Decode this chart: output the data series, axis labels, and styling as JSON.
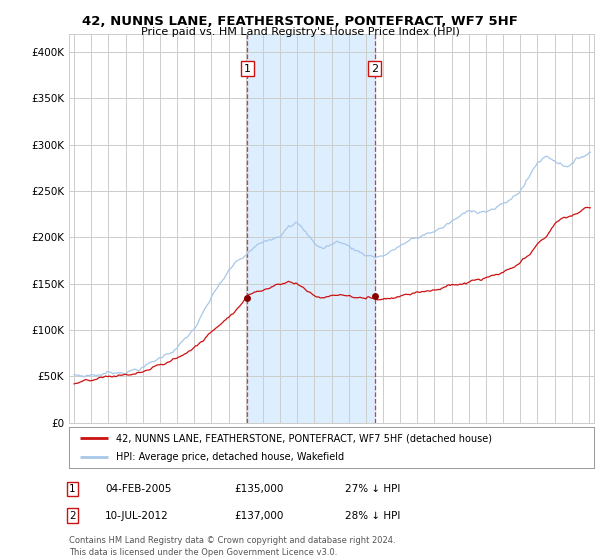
{
  "title": "42, NUNNS LANE, FEATHERSTONE, PONTEFRACT, WF7 5HF",
  "subtitle": "Price paid vs. HM Land Registry's House Price Index (HPI)",
  "footer": "Contains HM Land Registry data © Crown copyright and database right 2024.\nThis data is licensed under the Open Government Licence v3.0.",
  "legend_line1": "42, NUNNS LANE, FEATHERSTONE, PONTEFRACT, WF7 5HF (detached house)",
  "legend_line2": "HPI: Average price, detached house, Wakefield",
  "sale1_date": "04-FEB-2005",
  "sale1_price": "£135,000",
  "sale1_note": "27% ↓ HPI",
  "sale2_date": "10-JUL-2012",
  "sale2_price": "£137,000",
  "sale2_note": "28% ↓ HPI",
  "hpi_color": "#a8c8e8",
  "price_color": "#cc1111",
  "shaded_color": "#ddeeff",
  "sale1_x": 2005.09,
  "sale2_x": 2012.52,
  "sale1_y": 135000,
  "sale2_y": 137000,
  "ylim": [
    0,
    420000
  ],
  "xlim": [
    1994.7,
    2025.3
  ],
  "yticks": [
    0,
    50000,
    100000,
    150000,
    200000,
    250000,
    300000,
    350000,
    400000
  ],
  "ytick_labels": [
    "£0",
    "£50K",
    "£100K",
    "£150K",
    "£200K",
    "£250K",
    "£300K",
    "£350K",
    "£400K"
  ],
  "xticks": [
    1995,
    1996,
    1997,
    1998,
    1999,
    2000,
    2001,
    2002,
    2003,
    2004,
    2005,
    2006,
    2007,
    2008,
    2009,
    2010,
    2011,
    2012,
    2013,
    2014,
    2015,
    2016,
    2017,
    2018,
    2019,
    2020,
    2021,
    2022,
    2023,
    2024,
    2025
  ],
  "background_color": "#ffffff",
  "grid_color": "#cccccc"
}
